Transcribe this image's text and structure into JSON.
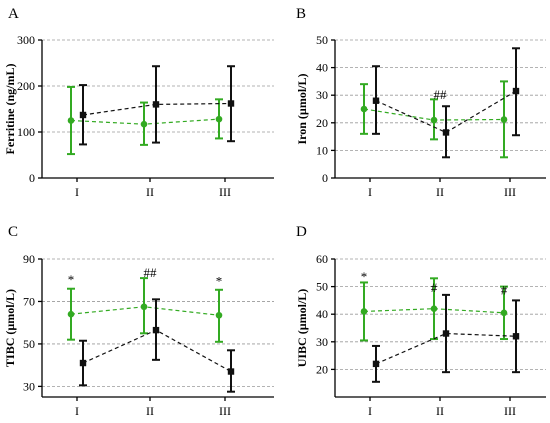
{
  "chart_data": [
    {
      "type": "line",
      "panel": "A",
      "ylabel": "Ferritine (ng/mL)",
      "categories": [
        "I",
        "II",
        "III"
      ],
      "ylim": [
        0,
        300
      ],
      "yticks": [
        0,
        100,
        200,
        300
      ],
      "grid": true,
      "series": [
        {
          "color": "#33aa22",
          "values": [
            125,
            117,
            128
          ],
          "err_low": [
            52,
            72,
            86
          ],
          "err_high": [
            198,
            164,
            171
          ]
        },
        {
          "color": "#111111",
          "values": [
            137,
            160,
            162
          ],
          "err_low": [
            73,
            77,
            80
          ],
          "err_high": [
            202,
            243,
            243
          ]
        }
      ],
      "annotations": []
    },
    {
      "type": "line",
      "panel": "B",
      "ylabel": "Iron (µmol/L)",
      "categories": [
        "I",
        "II",
        "III"
      ],
      "ylim": [
        0,
        50
      ],
      "yticks": [
        0,
        10,
        20,
        30,
        40,
        50
      ],
      "grid": true,
      "series": [
        {
          "color": "#33aa22",
          "values": [
            25,
            21,
            21.2
          ],
          "err_low": [
            16,
            14,
            7.5
          ],
          "err_high": [
            34,
            28.5,
            35
          ]
        },
        {
          "color": "#111111",
          "values": [
            28,
            16.5,
            31.5
          ],
          "err_low": [
            16,
            7.5,
            15.5
          ],
          "err_high": [
            40.5,
            26,
            47
          ]
        }
      ],
      "annotations": [
        {
          "text": "##",
          "category": "II",
          "y": 30
        }
      ]
    },
    {
      "type": "line",
      "panel": "C",
      "ylabel": "TIBC (µmol/L)",
      "categories": [
        "I",
        "II",
        "III"
      ],
      "ylim": [
        25,
        90
      ],
      "yticks": [
        30,
        50,
        70,
        90
      ],
      "grid": true,
      "series": [
        {
          "color": "#33aa22",
          "values": [
            64,
            67.5,
            63.5
          ],
          "err_low": [
            52,
            55,
            51
          ],
          "err_high": [
            76,
            81,
            75.5
          ]
        },
        {
          "color": "#111111",
          "values": [
            41,
            56.5,
            37
          ],
          "err_low": [
            30.5,
            42.5,
            27.5
          ],
          "err_high": [
            51.5,
            71,
            47
          ]
        }
      ],
      "annotations": [
        {
          "text": "*",
          "category": "I",
          "y": 80
        },
        {
          "text": "##",
          "category": "II",
          "y": 83.5
        },
        {
          "text": "*",
          "category": "III",
          "y": 79.5
        }
      ]
    },
    {
      "type": "line",
      "panel": "D",
      "ylabel": "UIBC (µmol/L)",
      "categories": [
        "I",
        "II",
        "III"
      ],
      "ylim": [
        10,
        60
      ],
      "yticks": [
        20,
        30,
        40,
        50,
        60
      ],
      "grid": true,
      "series": [
        {
          "color": "#33aa22",
          "values": [
            41,
            42,
            40.5
          ],
          "err_low": [
            30.5,
            31,
            31
          ],
          "err_high": [
            51.5,
            53,
            50
          ]
        },
        {
          "color": "#111111",
          "values": [
            22,
            33,
            32
          ],
          "err_low": [
            15.5,
            19,
            19
          ],
          "err_high": [
            28.5,
            47,
            45
          ]
        }
      ],
      "annotations": [
        {
          "text": "*",
          "category": "I",
          "y": 53.5
        },
        {
          "text": "#",
          "category": "II",
          "y": 49.5
        },
        {
          "text": "#",
          "category": "III",
          "y": 48.5
        }
      ]
    }
  ]
}
